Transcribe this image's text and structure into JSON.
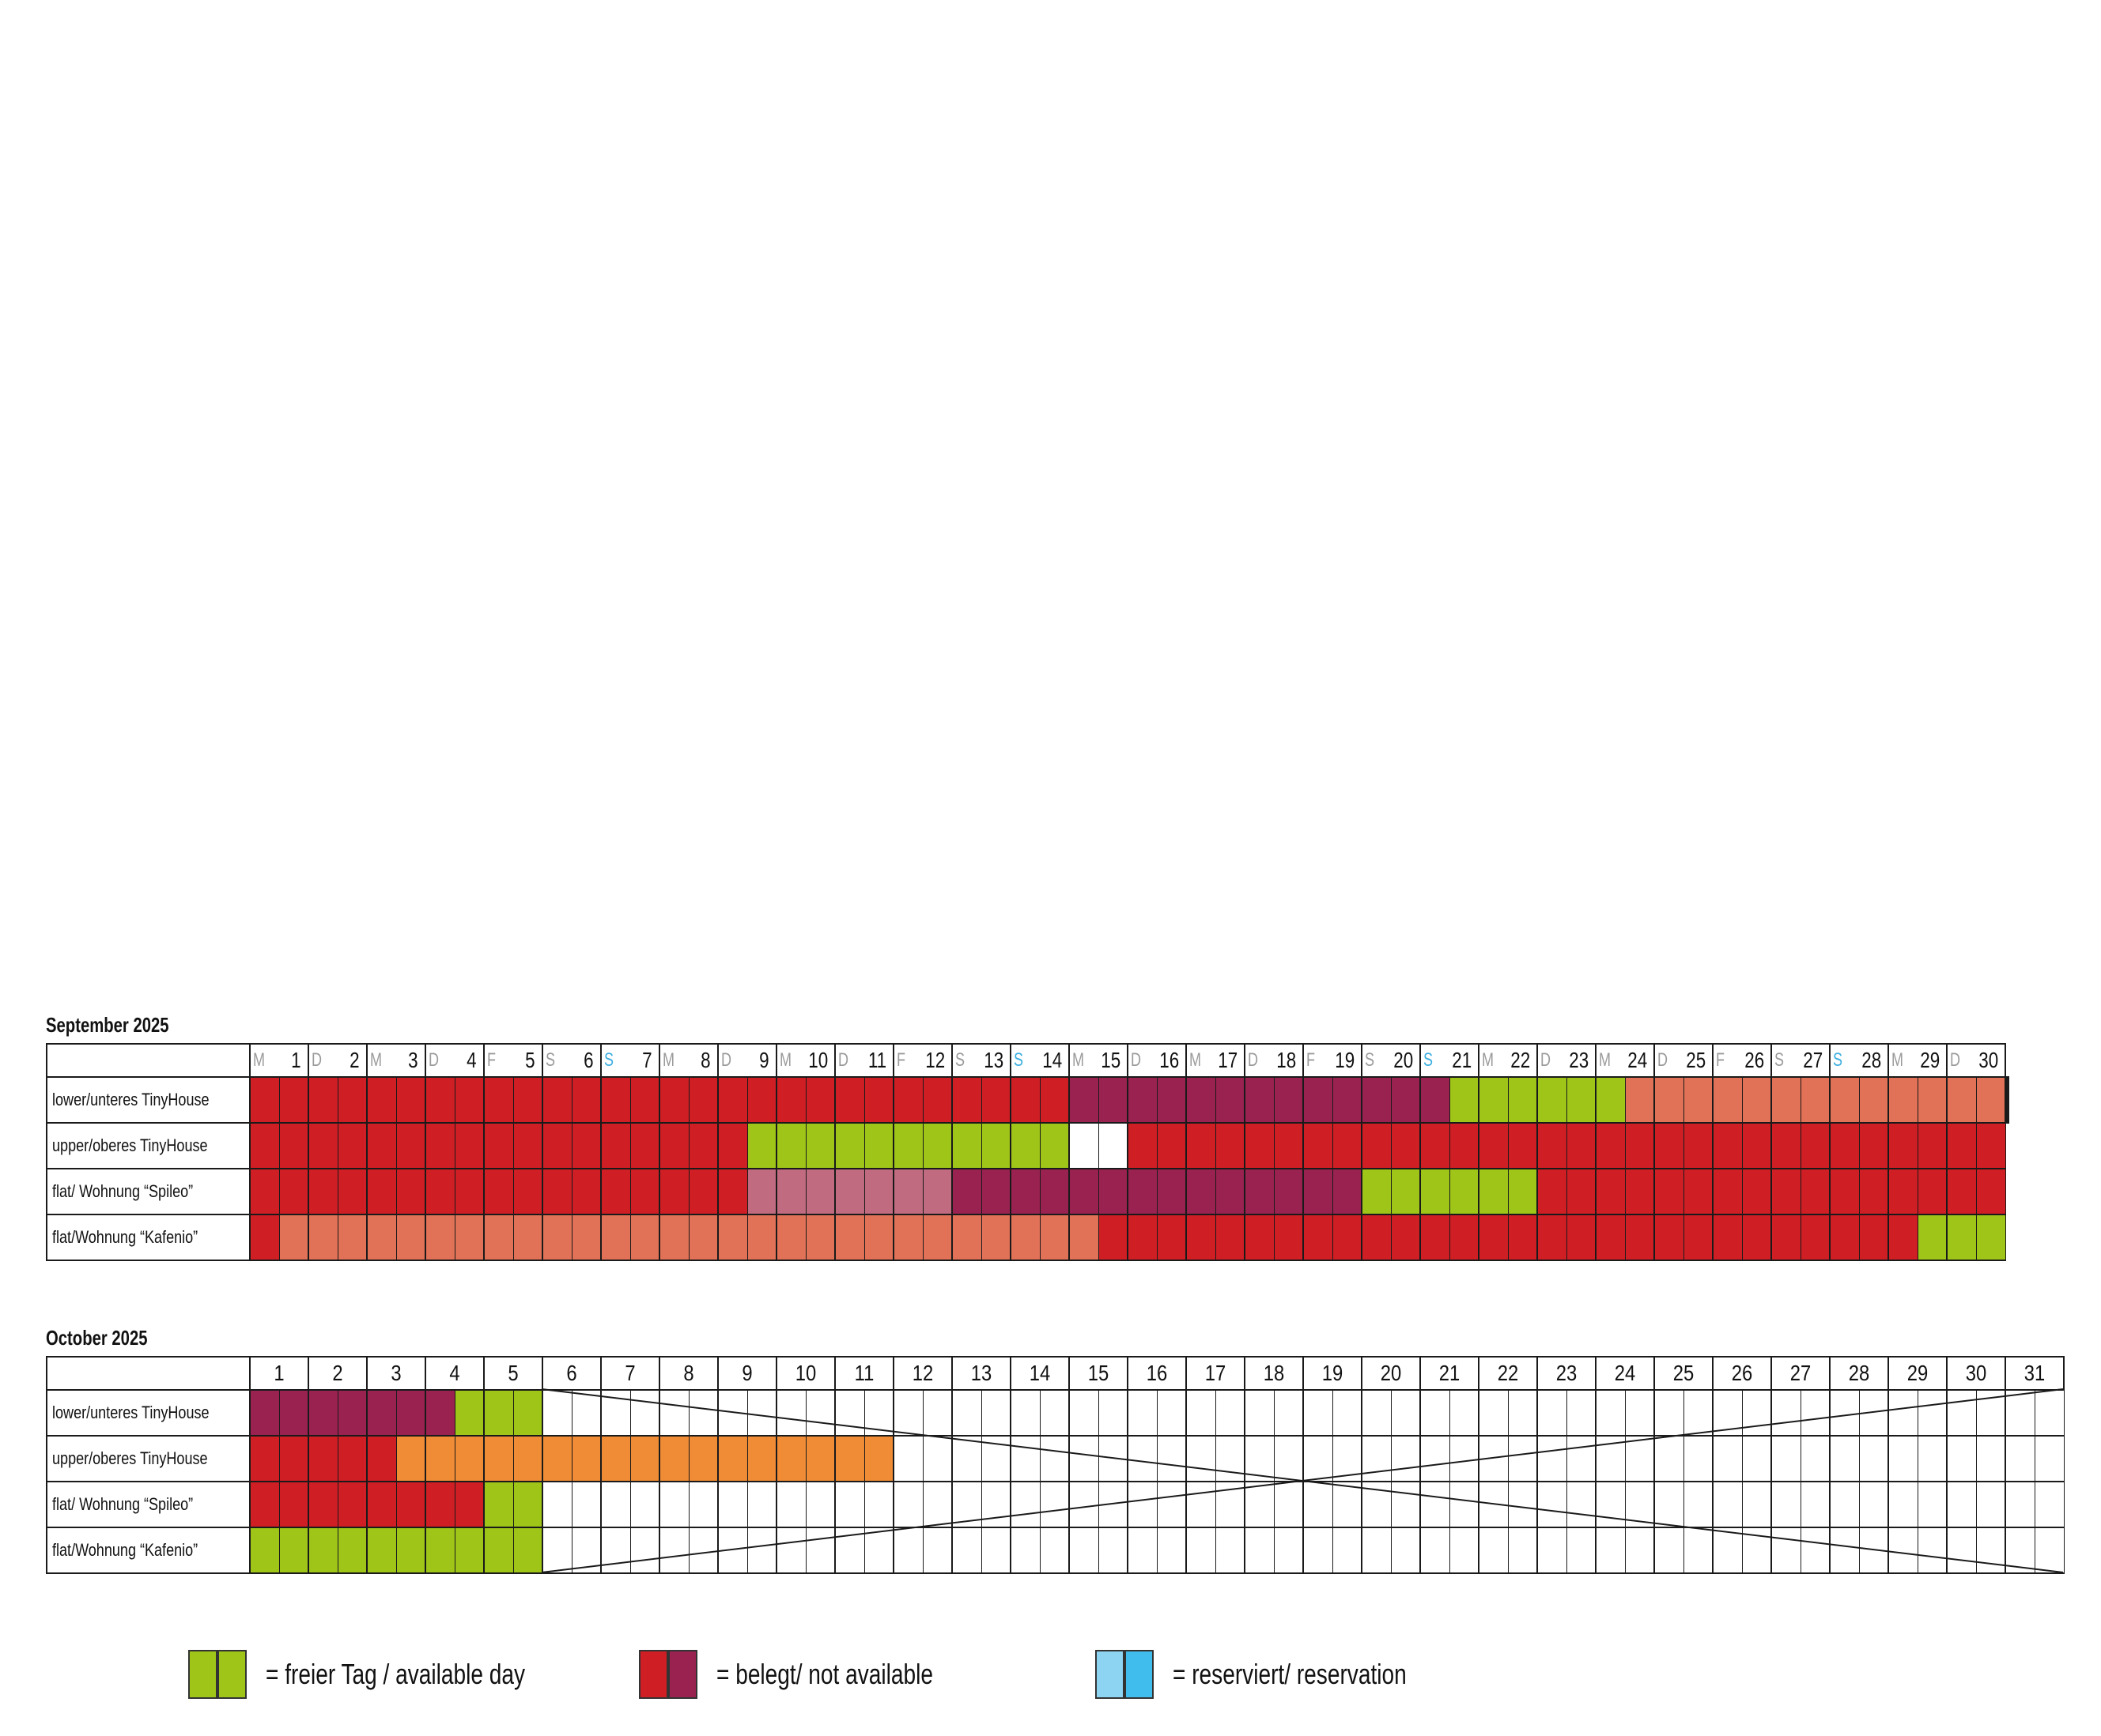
{
  "colors": {
    "red": "#d01e25",
    "wine": "#9a2250",
    "salmon": "#e27257",
    "green": "#9ec518",
    "pink": "#c16b80",
    "orange": "#f08c36",
    "white": "#ffffff",
    "lightblue": "#8dd3f2",
    "blue": "#40bdec",
    "weekday_gray": "#9a9a9a",
    "sunday_blue": "#3aaee0"
  },
  "september": {
    "title": "September 2025",
    "days": [
      {
        "d": "M",
        "n": "1"
      },
      {
        "d": "D",
        "n": "2"
      },
      {
        "d": "M",
        "n": "3"
      },
      {
        "d": "D",
        "n": "4"
      },
      {
        "d": "F",
        "n": "5"
      },
      {
        "d": "S",
        "n": "6"
      },
      {
        "d": "S",
        "n": "7",
        "sun": true
      },
      {
        "d": "M",
        "n": "8"
      },
      {
        "d": "D",
        "n": "9"
      },
      {
        "d": "M",
        "n": "10"
      },
      {
        "d": "D",
        "n": "11"
      },
      {
        "d": "F",
        "n": "12"
      },
      {
        "d": "S",
        "n": "13"
      },
      {
        "d": "S",
        "n": "14",
        "sun": true
      },
      {
        "d": "M",
        "n": "15"
      },
      {
        "d": "D",
        "n": "16"
      },
      {
        "d": "M",
        "n": "17"
      },
      {
        "d": "D",
        "n": "18"
      },
      {
        "d": "F",
        "n": "19"
      },
      {
        "d": "S",
        "n": "20"
      },
      {
        "d": "S",
        "n": "21",
        "sun": true
      },
      {
        "d": "M",
        "n": "22"
      },
      {
        "d": "D",
        "n": "23"
      },
      {
        "d": "M",
        "n": "24"
      },
      {
        "d": "D",
        "n": "25"
      },
      {
        "d": "F",
        "n": "26"
      },
      {
        "d": "S",
        "n": "27"
      },
      {
        "d": "S",
        "n": "28",
        "sun": true
      },
      {
        "d": "M",
        "n": "29"
      },
      {
        "d": "D",
        "n": "30"
      }
    ],
    "rows": [
      {
        "label": "lower/unteres TinyHouse",
        "cells": [
          "red:28",
          "wine:1",
          "wine:12",
          "green:6",
          "salmon:13",
          "wine:3"
        ]
      },
      {
        "label": "upper/oberes TinyHouse",
        "cells": [
          "red:17",
          "green:11",
          "white:2",
          "red:30"
        ]
      },
      {
        "label": "flat/ Wohnung “Spileo”",
        "cells": [
          "red:17",
          "pink:7",
          "wine:14",
          "green:6",
          "red:16"
        ]
      },
      {
        "label": "flat/Wohnung “Kafenio”",
        "cells": [
          "red:1",
          "salmon:28",
          "red:28",
          "green:3"
        ]
      }
    ]
  },
  "october": {
    "title": "October 2025",
    "days": [
      "1",
      "2",
      "3",
      "4",
      "5",
      "6",
      "7",
      "8",
      "9",
      "10",
      "11",
      "12",
      "13",
      "14",
      "15",
      "16",
      "17",
      "18",
      "19",
      "20",
      "21",
      "22",
      "23",
      "24",
      "25",
      "26",
      "27",
      "28",
      "29",
      "30",
      "31"
    ],
    "rows": [
      {
        "label": "lower/unteres TinyHouse",
        "cells": [
          "wine:7",
          "green:3",
          "white:52"
        ]
      },
      {
        "label": "upper/oberes TinyHouse",
        "cells": [
          "red:5",
          "orange:17",
          "white:40"
        ]
      },
      {
        "label": "flat/ Wohnung “Spileo”",
        "cells": [
          "red:8",
          "green:2",
          "white:52"
        ]
      },
      {
        "label": "flat/Wohnung “Kafenio”",
        "cells": [
          "green:10",
          "white:52"
        ]
      }
    ]
  },
  "legend": [
    {
      "text": "= freier Tag / available day",
      "c1": "green",
      "c2": "green"
    },
    {
      "text": "= belegt/ not available",
      "c1": "red",
      "c2": "wine"
    },
    {
      "text": "= reserviert/ reservation",
      "c1": "lightblue",
      "c2": "blue"
    }
  ]
}
